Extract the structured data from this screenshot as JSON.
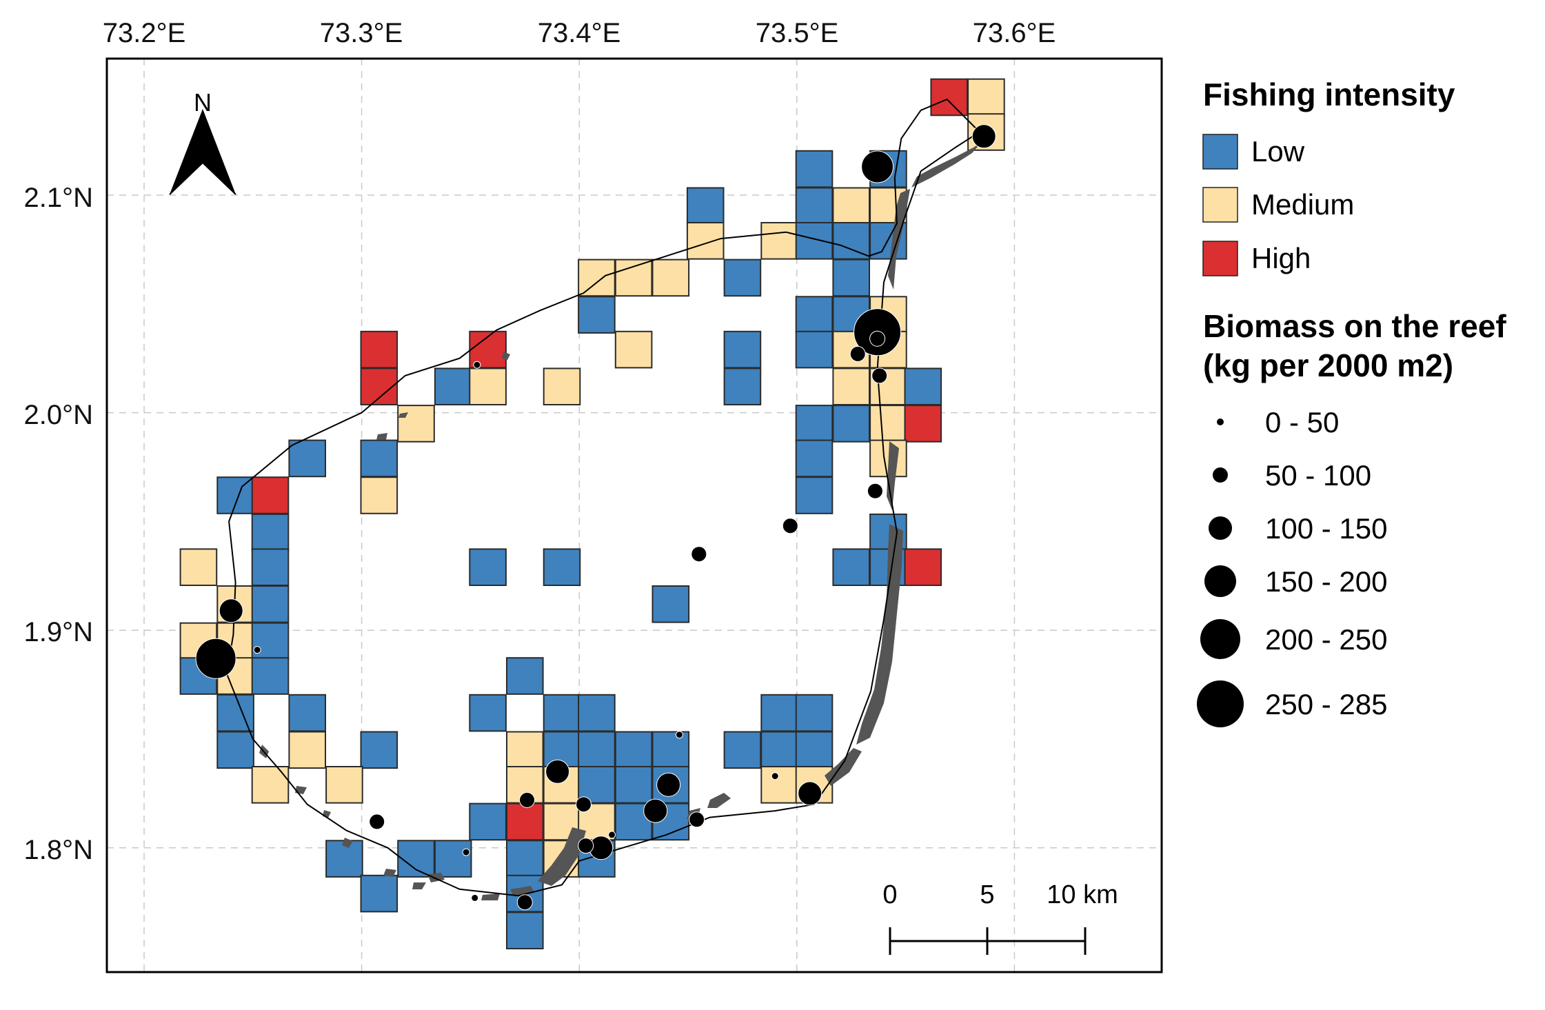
{
  "map": {
    "x_axis_labels": [
      "73.2°E",
      "73.3°E",
      "73.4°E",
      "73.5°E",
      "73.6°E"
    ],
    "y_axis_labels": [
      "2.1°N",
      "2.0°N",
      "1.9°N",
      "1.8°N"
    ],
    "north_label": "N",
    "colors": {
      "Low": "#3f82be",
      "Medium": "#fde0a5",
      "High": "#da3032",
      "island": "#555555",
      "grid": "#c8c8c8"
    }
  },
  "legend": {
    "fishing_title": "Fishing intensity",
    "fishing_items": [
      "Low",
      "Medium",
      "High"
    ],
    "biomass_title_line1": "Biomass on the reef",
    "biomass_title_line2": "(kg per 2000 m2)",
    "biomass_items": [
      "0 - 50",
      "50 - 100",
      "100 - 150",
      "150 - 200",
      "200 - 250",
      "250 - 285"
    ]
  },
  "scale_bar": {
    "labels": [
      "0",
      "5",
      "10 km"
    ]
  },
  "chart_data": {
    "type": "scatter",
    "title": "",
    "xlim": [
      73.183,
      73.667
    ],
    "ylim": [
      1.743,
      2.163
    ],
    "grid_cells": [
      {
        "lon": 73.57,
        "lat": 2.145,
        "level": "High"
      },
      {
        "lon": 73.587,
        "lat": 2.145,
        "level": "Medium"
      },
      {
        "lon": 73.587,
        "lat": 2.129,
        "level": "Medium"
      },
      {
        "lon": 73.508,
        "lat": 2.112,
        "level": "Low"
      },
      {
        "lon": 73.542,
        "lat": 2.112,
        "level": "Low"
      },
      {
        "lon": 73.458,
        "lat": 2.095,
        "level": "Low"
      },
      {
        "lon": 73.508,
        "lat": 2.095,
        "level": "Low"
      },
      {
        "lon": 73.525,
        "lat": 2.095,
        "level": "Medium"
      },
      {
        "lon": 73.542,
        "lat": 2.095,
        "level": "Medium"
      },
      {
        "lon": 73.458,
        "lat": 2.079,
        "level": "Medium"
      },
      {
        "lon": 73.492,
        "lat": 2.079,
        "level": "Medium"
      },
      {
        "lon": 73.508,
        "lat": 2.079,
        "level": "Low"
      },
      {
        "lon": 73.525,
        "lat": 2.079,
        "level": "Low"
      },
      {
        "lon": 73.542,
        "lat": 2.079,
        "level": "Low"
      },
      {
        "lon": 73.408,
        "lat": 2.062,
        "level": "Medium"
      },
      {
        "lon": 73.425,
        "lat": 2.062,
        "level": "Medium"
      },
      {
        "lon": 73.442,
        "lat": 2.062,
        "level": "Medium"
      },
      {
        "lon": 73.475,
        "lat": 2.062,
        "level": "Low"
      },
      {
        "lon": 73.525,
        "lat": 2.062,
        "level": "Low"
      },
      {
        "lon": 73.408,
        "lat": 2.045,
        "level": "Low"
      },
      {
        "lon": 73.508,
        "lat": 2.045,
        "level": "Low"
      },
      {
        "lon": 73.525,
        "lat": 2.045,
        "level": "Low"
      },
      {
        "lon": 73.542,
        "lat": 2.045,
        "level": "Medium"
      },
      {
        "lon": 73.308,
        "lat": 2.029,
        "level": "High"
      },
      {
        "lon": 73.358,
        "lat": 2.029,
        "level": "High"
      },
      {
        "lon": 73.425,
        "lat": 2.029,
        "level": "Medium"
      },
      {
        "lon": 73.475,
        "lat": 2.029,
        "level": "Low"
      },
      {
        "lon": 73.508,
        "lat": 2.029,
        "level": "Low"
      },
      {
        "lon": 73.525,
        "lat": 2.029,
        "level": "Medium"
      },
      {
        "lon": 73.542,
        "lat": 2.029,
        "level": "Medium"
      },
      {
        "lon": 73.308,
        "lat": 2.012,
        "level": "High"
      },
      {
        "lon": 73.342,
        "lat": 2.012,
        "level": "Low"
      },
      {
        "lon": 73.358,
        "lat": 2.012,
        "level": "Medium"
      },
      {
        "lon": 73.392,
        "lat": 2.012,
        "level": "Medium"
      },
      {
        "lon": 73.475,
        "lat": 2.012,
        "level": "Low"
      },
      {
        "lon": 73.525,
        "lat": 2.012,
        "level": "Medium"
      },
      {
        "lon": 73.542,
        "lat": 2.012,
        "level": "Medium"
      },
      {
        "lon": 73.558,
        "lat": 2.012,
        "level": "Low"
      },
      {
        "lon": 73.325,
        "lat": 1.995,
        "level": "Medium"
      },
      {
        "lon": 73.508,
        "lat": 1.995,
        "level": "Low"
      },
      {
        "lon": 73.525,
        "lat": 1.995,
        "level": "Low"
      },
      {
        "lon": 73.542,
        "lat": 1.995,
        "level": "Medium"
      },
      {
        "lon": 73.558,
        "lat": 1.995,
        "level": "High"
      },
      {
        "lon": 73.275,
        "lat": 1.979,
        "level": "Low"
      },
      {
        "lon": 73.308,
        "lat": 1.979,
        "level": "Low"
      },
      {
        "lon": 73.508,
        "lat": 1.979,
        "level": "Low"
      },
      {
        "lon": 73.542,
        "lat": 1.979,
        "level": "Medium"
      },
      {
        "lon": 73.242,
        "lat": 1.962,
        "level": "Low"
      },
      {
        "lon": 73.258,
        "lat": 1.962,
        "level": "High"
      },
      {
        "lon": 73.308,
        "lat": 1.962,
        "level": "Medium"
      },
      {
        "lon": 73.508,
        "lat": 1.962,
        "level": "Low"
      },
      {
        "lon": 73.258,
        "lat": 1.945,
        "level": "Low"
      },
      {
        "lon": 73.542,
        "lat": 1.945,
        "level": "Low"
      },
      {
        "lon": 73.225,
        "lat": 1.929,
        "level": "Medium"
      },
      {
        "lon": 73.258,
        "lat": 1.929,
        "level": "Low"
      },
      {
        "lon": 73.358,
        "lat": 1.929,
        "level": "Low"
      },
      {
        "lon": 73.392,
        "lat": 1.929,
        "level": "Low"
      },
      {
        "lon": 73.525,
        "lat": 1.929,
        "level": "Low"
      },
      {
        "lon": 73.542,
        "lat": 1.929,
        "level": "Low"
      },
      {
        "lon": 73.558,
        "lat": 1.929,
        "level": "High"
      },
      {
        "lon": 73.242,
        "lat": 1.912,
        "level": "Medium"
      },
      {
        "lon": 73.258,
        "lat": 1.912,
        "level": "Low"
      },
      {
        "lon": 73.442,
        "lat": 1.912,
        "level": "Low"
      },
      {
        "lon": 73.225,
        "lat": 1.895,
        "level": "Medium"
      },
      {
        "lon": 73.242,
        "lat": 1.895,
        "level": "Medium"
      },
      {
        "lon": 73.258,
        "lat": 1.895,
        "level": "Low"
      },
      {
        "lon": 73.225,
        "lat": 1.879,
        "level": "Low"
      },
      {
        "lon": 73.242,
        "lat": 1.879,
        "level": "Medium"
      },
      {
        "lon": 73.258,
        "lat": 1.879,
        "level": "Low"
      },
      {
        "lon": 73.375,
        "lat": 1.879,
        "level": "Low"
      },
      {
        "lon": 73.242,
        "lat": 1.862,
        "level": "Low"
      },
      {
        "lon": 73.275,
        "lat": 1.862,
        "level": "Low"
      },
      {
        "lon": 73.358,
        "lat": 1.862,
        "level": "Low"
      },
      {
        "lon": 73.392,
        "lat": 1.862,
        "level": "Low"
      },
      {
        "lon": 73.408,
        "lat": 1.862,
        "level": "Low"
      },
      {
        "lon": 73.492,
        "lat": 1.862,
        "level": "Low"
      },
      {
        "lon": 73.508,
        "lat": 1.862,
        "level": "Low"
      },
      {
        "lon": 73.242,
        "lat": 1.845,
        "level": "Low"
      },
      {
        "lon": 73.275,
        "lat": 1.845,
        "level": "Medium"
      },
      {
        "lon": 73.308,
        "lat": 1.845,
        "level": "Low"
      },
      {
        "lon": 73.375,
        "lat": 1.845,
        "level": "Medium"
      },
      {
        "lon": 73.392,
        "lat": 1.845,
        "level": "Low"
      },
      {
        "lon": 73.408,
        "lat": 1.845,
        "level": "Low"
      },
      {
        "lon": 73.425,
        "lat": 1.845,
        "level": "Low"
      },
      {
        "lon": 73.442,
        "lat": 1.845,
        "level": "Low"
      },
      {
        "lon": 73.475,
        "lat": 1.845,
        "level": "Low"
      },
      {
        "lon": 73.492,
        "lat": 1.845,
        "level": "Low"
      },
      {
        "lon": 73.508,
        "lat": 1.845,
        "level": "Low"
      },
      {
        "lon": 73.258,
        "lat": 1.829,
        "level": "Medium"
      },
      {
        "lon": 73.292,
        "lat": 1.829,
        "level": "Medium"
      },
      {
        "lon": 73.375,
        "lat": 1.829,
        "level": "Medium"
      },
      {
        "lon": 73.392,
        "lat": 1.829,
        "level": "Medium"
      },
      {
        "lon": 73.408,
        "lat": 1.829,
        "level": "Low"
      },
      {
        "lon": 73.425,
        "lat": 1.829,
        "level": "Low"
      },
      {
        "lon": 73.442,
        "lat": 1.829,
        "level": "Low"
      },
      {
        "lon": 73.492,
        "lat": 1.829,
        "level": "Medium"
      },
      {
        "lon": 73.508,
        "lat": 1.829,
        "level": "Medium"
      },
      {
        "lon": 73.358,
        "lat": 1.812,
        "level": "Low"
      },
      {
        "lon": 73.375,
        "lat": 1.812,
        "level": "High"
      },
      {
        "lon": 73.392,
        "lat": 1.812,
        "level": "Medium"
      },
      {
        "lon": 73.408,
        "lat": 1.812,
        "level": "Medium"
      },
      {
        "lon": 73.425,
        "lat": 1.812,
        "level": "Low"
      },
      {
        "lon": 73.442,
        "lat": 1.812,
        "level": "Low"
      },
      {
        "lon": 73.292,
        "lat": 1.795,
        "level": "Low"
      },
      {
        "lon": 73.325,
        "lat": 1.795,
        "level": "Low"
      },
      {
        "lon": 73.342,
        "lat": 1.795,
        "level": "Low"
      },
      {
        "lon": 73.375,
        "lat": 1.795,
        "level": "Low"
      },
      {
        "lon": 73.392,
        "lat": 1.795,
        "level": "Medium"
      },
      {
        "lon": 73.408,
        "lat": 1.795,
        "level": "Low"
      },
      {
        "lon": 73.308,
        "lat": 1.779,
        "level": "Low"
      },
      {
        "lon": 73.375,
        "lat": 1.779,
        "level": "Low"
      },
      {
        "lon": 73.375,
        "lat": 1.762,
        "level": "Low"
      }
    ],
    "biomass_points": [
      {
        "lon": 73.586,
        "lat": 2.127,
        "bin": "100 - 150"
      },
      {
        "lon": 73.537,
        "lat": 2.113,
        "bin": "150 - 200"
      },
      {
        "lon": 73.537,
        "lat": 2.037,
        "bin": "250 - 285"
      },
      {
        "lon": 73.537,
        "lat": 2.034,
        "bin": "50 - 100"
      },
      {
        "lon": 73.528,
        "lat": 2.027,
        "bin": "50 - 100"
      },
      {
        "lon": 73.538,
        "lat": 2.017,
        "bin": "50 - 100"
      },
      {
        "lon": 73.536,
        "lat": 1.964,
        "bin": "50 - 100"
      },
      {
        "lon": 73.497,
        "lat": 1.948,
        "bin": "50 - 100"
      },
      {
        "lon": 73.455,
        "lat": 1.935,
        "bin": "50 - 100"
      },
      {
        "lon": 73.353,
        "lat": 2.022,
        "bin": "0 - 50"
      },
      {
        "lon": 73.24,
        "lat": 1.909,
        "bin": "100 - 150"
      },
      {
        "lon": 73.233,
        "lat": 1.887,
        "bin": "200 - 250"
      },
      {
        "lon": 73.252,
        "lat": 1.891,
        "bin": "0 - 50"
      },
      {
        "lon": 73.39,
        "lat": 1.835,
        "bin": "100 - 150"
      },
      {
        "lon": 73.441,
        "lat": 1.829,
        "bin": "100 - 150"
      },
      {
        "lon": 73.435,
        "lat": 1.817,
        "bin": "100 - 150"
      },
      {
        "lon": 73.41,
        "lat": 1.8,
        "bin": "100 - 150"
      },
      {
        "lon": 73.403,
        "lat": 1.801,
        "bin": "50 - 100"
      },
      {
        "lon": 73.376,
        "lat": 1.822,
        "bin": "50 - 100"
      },
      {
        "lon": 73.402,
        "lat": 1.82,
        "bin": "50 - 100"
      },
      {
        "lon": 73.454,
        "lat": 1.813,
        "bin": "50 - 100"
      },
      {
        "lon": 73.506,
        "lat": 1.825,
        "bin": "100 - 150"
      },
      {
        "lon": 73.307,
        "lat": 1.812,
        "bin": "50 - 100"
      },
      {
        "lon": 73.375,
        "lat": 1.775,
        "bin": "50 - 100"
      },
      {
        "lon": 73.446,
        "lat": 1.852,
        "bin": "0 - 50"
      },
      {
        "lon": 73.49,
        "lat": 1.833,
        "bin": "0 - 50"
      },
      {
        "lon": 73.415,
        "lat": 1.806,
        "bin": "0 - 50"
      },
      {
        "lon": 73.348,
        "lat": 1.798,
        "bin": "0 - 50"
      },
      {
        "lon": 73.352,
        "lat": 1.777,
        "bin": "0 - 50"
      }
    ],
    "lagoon_outline": [
      [
        73.569,
        2.144
      ],
      [
        73.557,
        2.139
      ],
      [
        73.548,
        2.126
      ],
      [
        73.545,
        2.108
      ],
      [
        73.546,
        2.087
      ],
      [
        73.539,
        2.074
      ],
      [
        73.533,
        2.072
      ],
      [
        73.52,
        2.077
      ],
      [
        73.495,
        2.083
      ],
      [
        73.465,
        2.08
      ],
      [
        73.44,
        2.072
      ],
      [
        73.412,
        2.063
      ],
      [
        73.402,
        2.055
      ],
      [
        73.382,
        2.047
      ],
      [
        73.362,
        2.038
      ],
      [
        73.345,
        2.025
      ],
      [
        73.32,
        2.017
      ],
      [
        73.3,
        2.0
      ],
      [
        73.268,
        1.985
      ],
      [
        73.245,
        1.966
      ],
      [
        73.239,
        1.95
      ],
      [
        73.242,
        1.922
      ],
      [
        73.241,
        1.898
      ],
      [
        73.238,
        1.88
      ],
      [
        73.25,
        1.85
      ],
      [
        73.263,
        1.835
      ],
      [
        73.275,
        1.82
      ],
      [
        73.293,
        1.808
      ],
      [
        73.312,
        1.8
      ],
      [
        73.325,
        1.79
      ],
      [
        73.345,
        1.781
      ],
      [
        73.372,
        1.778
      ],
      [
        73.392,
        1.783
      ],
      [
        73.4,
        1.794
      ],
      [
        73.42,
        1.8
      ],
      [
        73.44,
        1.806
      ],
      [
        73.46,
        1.814
      ],
      [
        73.49,
        1.817
      ],
      [
        73.508,
        1.82
      ],
      [
        73.522,
        1.84
      ],
      [
        73.534,
        1.872
      ],
      [
        73.54,
        1.905
      ],
      [
        73.546,
        1.945
      ],
      [
        73.54,
        1.98
      ],
      [
        73.537,
        2.02
      ],
      [
        73.54,
        2.06
      ],
      [
        73.549,
        2.088
      ],
      [
        73.557,
        2.111
      ],
      [
        73.573,
        2.122
      ],
      [
        73.584,
        2.129
      ],
      [
        73.569,
        2.144
      ]
    ],
    "scale_bar_km": [
      0,
      5,
      10
    ]
  }
}
